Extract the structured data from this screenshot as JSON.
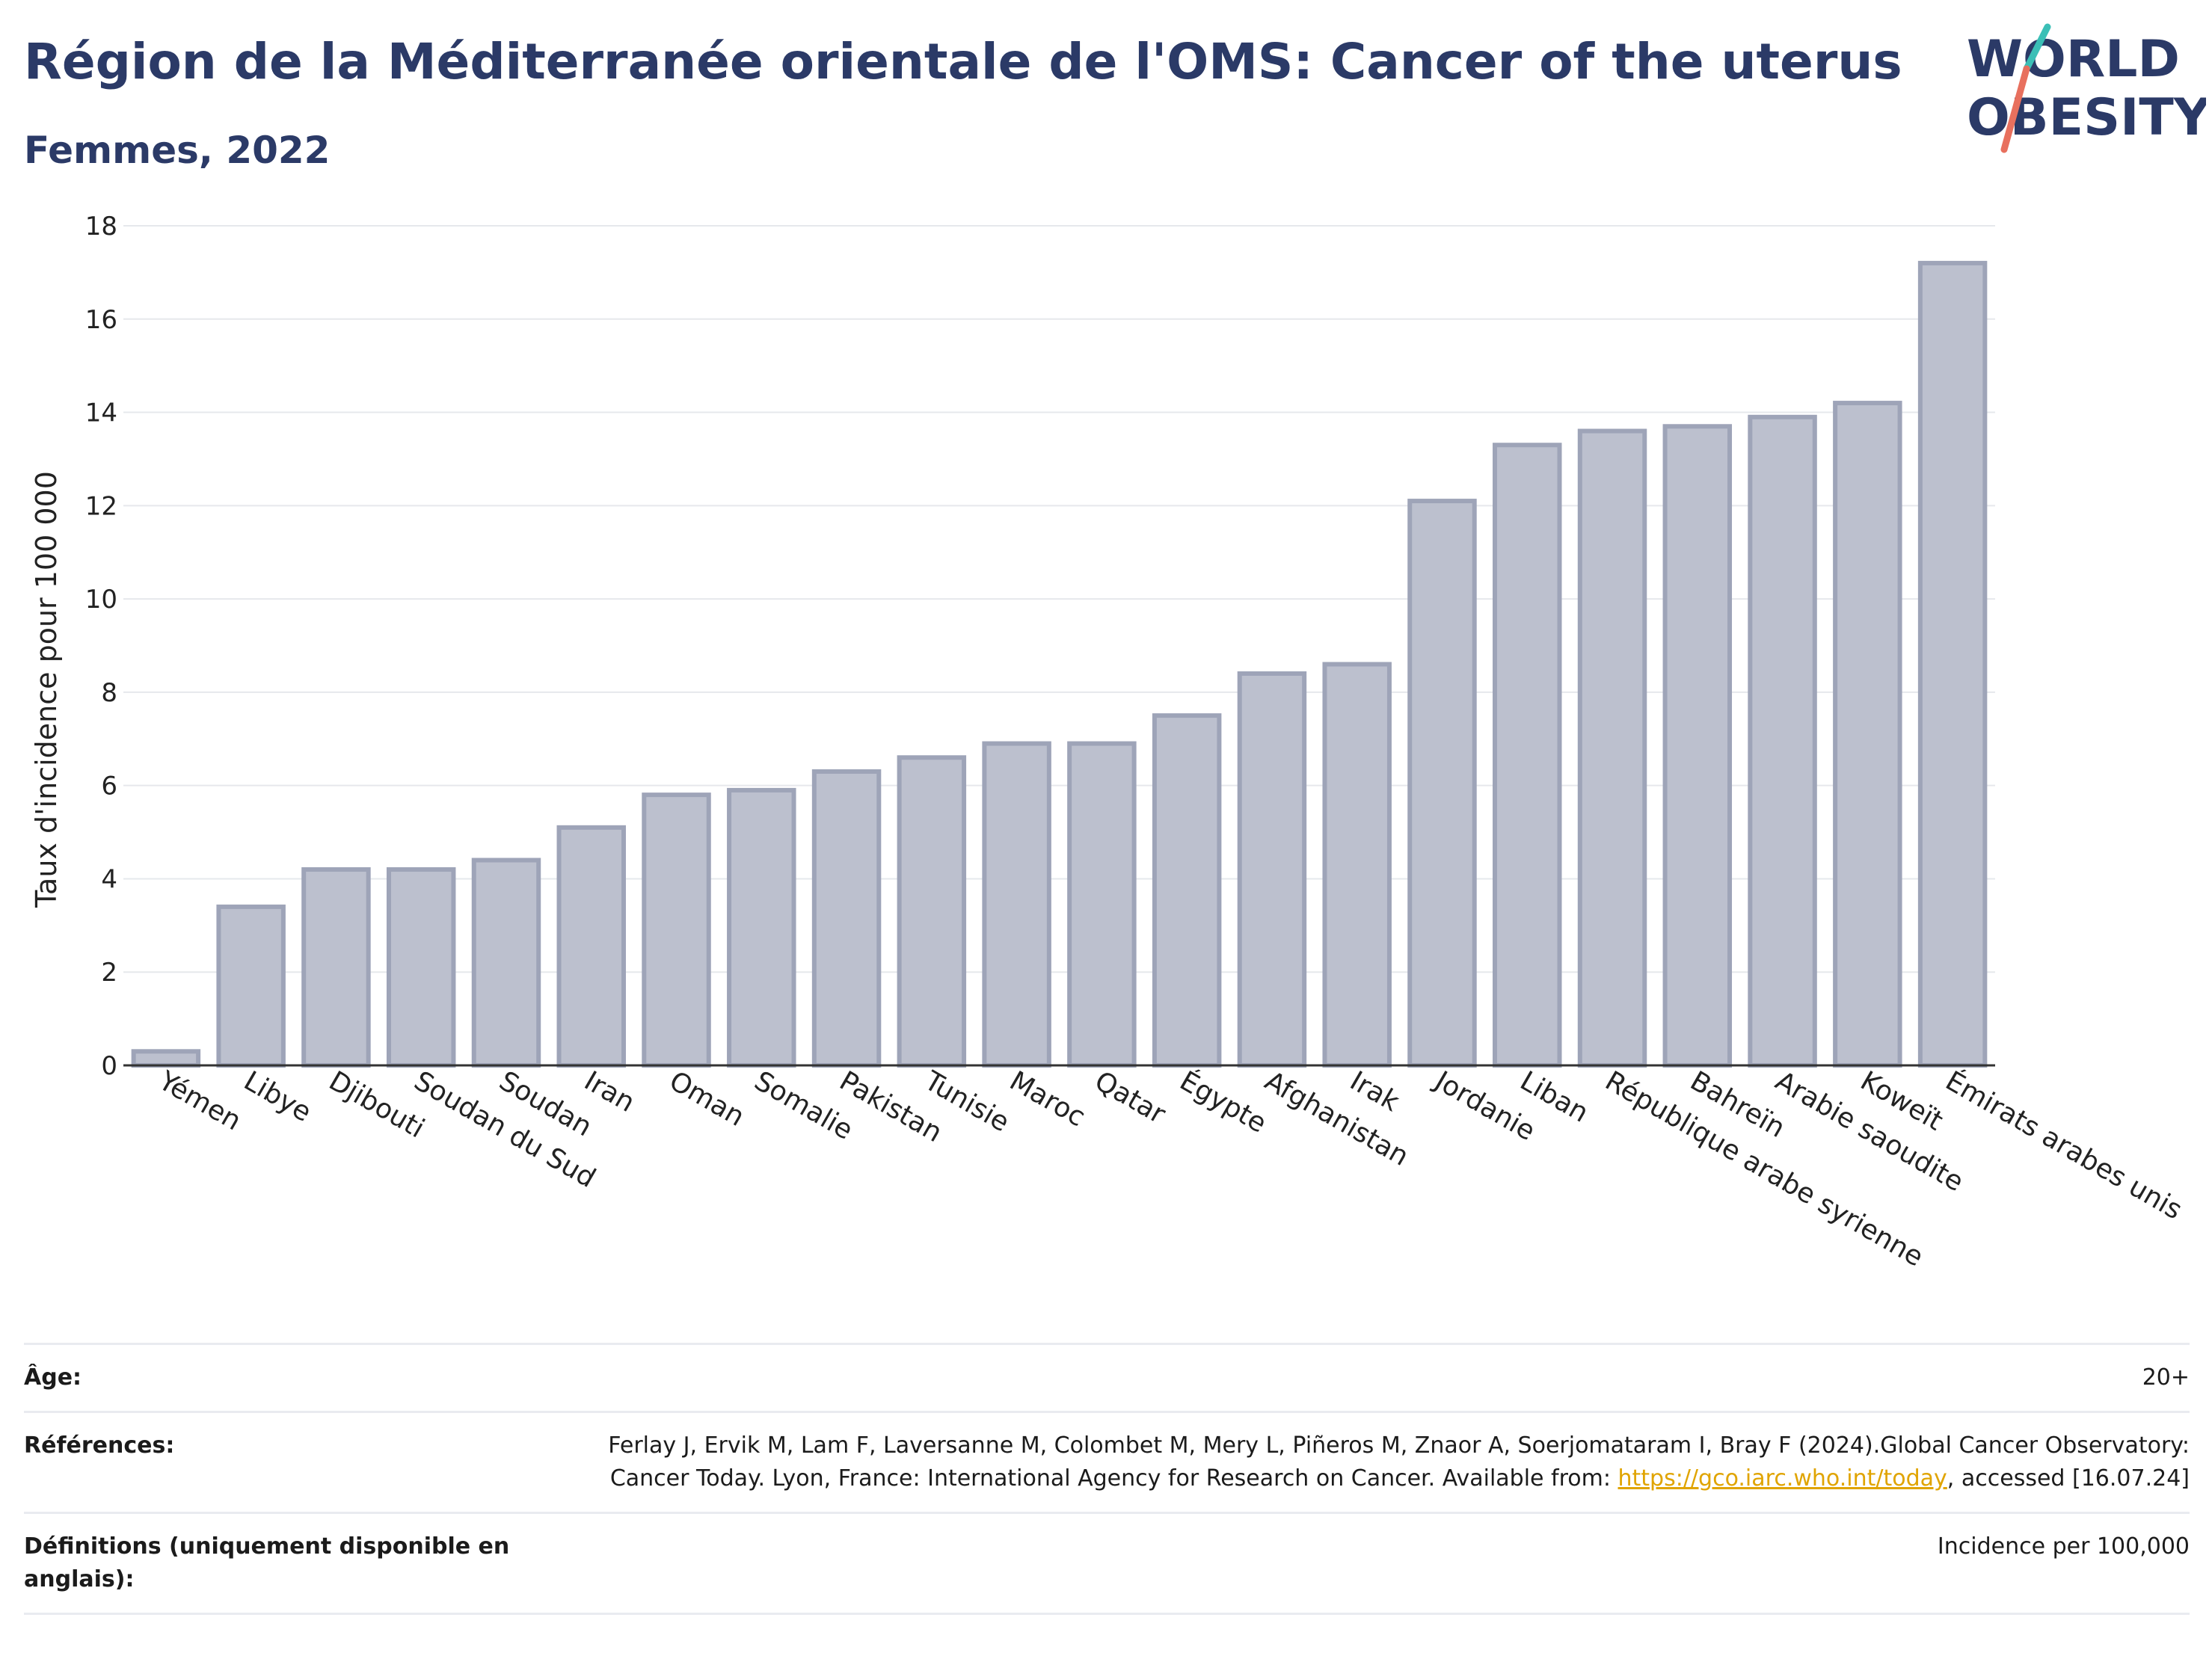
{
  "header": {
    "title": "Région de la Méditerranée orientale de l'OMS: Cancer of the uterus",
    "subtitle": "Femmes, 2022"
  },
  "logo": {
    "line1": "WORLD",
    "line2": "OBESITY"
  },
  "chart_data": {
    "type": "bar",
    "categories": [
      "Yémen",
      "Libye",
      "Djibouti",
      "Soudan du Sud",
      "Soudan",
      "Iran",
      "Oman",
      "Somalie",
      "Pakistan",
      "Tunisie",
      "Maroc",
      "Qatar",
      "Égypte",
      "Afghanistan",
      "Irak",
      "Jordanie",
      "Liban",
      "République arabe syrienne",
      "Bahreïn",
      "Arabie saoudite",
      "Koweït",
      "Émirats arabes unis"
    ],
    "values": [
      0.3,
      3.4,
      4.2,
      4.2,
      4.4,
      5.1,
      5.8,
      5.9,
      6.3,
      6.6,
      6.9,
      6.9,
      7.5,
      8.4,
      8.6,
      12.1,
      13.3,
      13.6,
      13.7,
      13.9,
      14.2,
      17.2
    ],
    "ylabel": "Taux d'incidence pour 100 000",
    "xlabel": "",
    "ylim": [
      0,
      18
    ],
    "yticks": [
      0,
      2,
      4,
      6,
      8,
      10,
      12,
      14,
      16,
      18
    ],
    "grid": true,
    "bar_color": "#bcc0ce",
    "bar_edge_color": "#9ea4b8"
  },
  "info": {
    "age_label": "Âge:",
    "age_value": "20+",
    "references_label": "Références:",
    "references_text": "Ferlay J, Ervik M, Lam F, Laversanne M, Colombet M, Mery L, Piñeros M, Znaor A, Soerjomataram I, Bray F (2024).Global Cancer Observatory: Cancer Today. Lyon, France: International Agency for Research on Cancer. Available from: ",
    "references_link": "https://gco.iarc.who.int/today",
    "references_suffix": ", accessed [16.07.24]",
    "definitions_label": "Définitions (uniquement disponible en anglais):",
    "definitions_value": "Incidence per 100,000"
  }
}
